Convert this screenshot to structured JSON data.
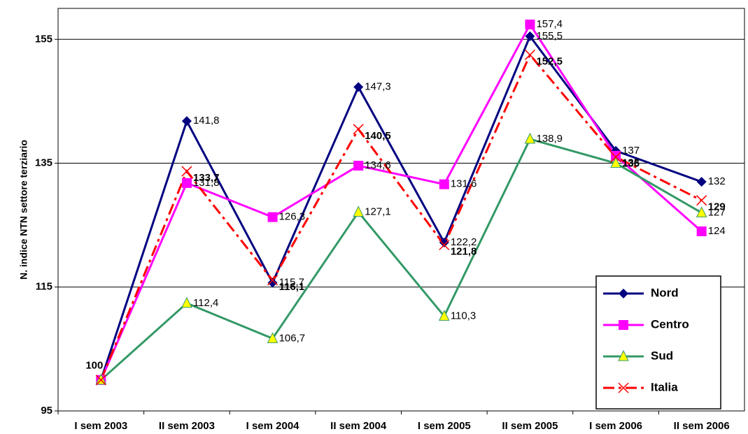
{
  "chart_data": {
    "type": "line",
    "y_label": "N. indice NTN settore terziario",
    "categories": [
      "I sem 2003",
      "II sem 2003",
      "I sem 2004",
      "II sem 2004",
      "I sem 2005",
      "II sem 2005",
      "I sem 2006",
      "II sem 2006"
    ],
    "ylim": [
      95,
      160
    ],
    "yticks": [
      95,
      115,
      135,
      155
    ],
    "legend": "lower right",
    "series": [
      {
        "name": "Nord",
        "color": "#000080",
        "marker": "diamond",
        "values": [
          100,
          141.8,
          115.7,
          147.3,
          122.2,
          155.5,
          137,
          132
        ],
        "value_labels": [
          null,
          "141,8",
          "115,7",
          "147,3",
          "122,2",
          "155,5",
          "137",
          "132"
        ]
      },
      {
        "name": "Centro",
        "color": "#ff00ff",
        "marker": "square",
        "values": [
          100,
          131.8,
          126.3,
          134.6,
          131.6,
          157.4,
          136.2,
          124
        ],
        "value_labels": [
          null,
          "131,8",
          "126,3",
          "134,6",
          "131,6",
          "157,4",
          null,
          "124"
        ]
      },
      {
        "name": "Sud",
        "color": "#339966",
        "marker": "triangle",
        "values": [
          100,
          112.4,
          106.7,
          127.1,
          110.3,
          138.9,
          135,
          127
        ],
        "value_labels": [
          null,
          "112,4",
          "106,7",
          "127,1",
          "110,3",
          "138,9",
          "135",
          "127"
        ]
      },
      {
        "name": "Italia",
        "color": "#ff0000",
        "marker": "x",
        "dash": "16,6,4,6",
        "values": [
          100,
          133.7,
          116.1,
          140.5,
          121.8,
          152.5,
          136,
          129
        ],
        "value_labels": [
          "100",
          "133,7",
          "116,1",
          "140,5",
          "121,8",
          "152,5",
          "136",
          "129"
        ]
      }
    ]
  }
}
